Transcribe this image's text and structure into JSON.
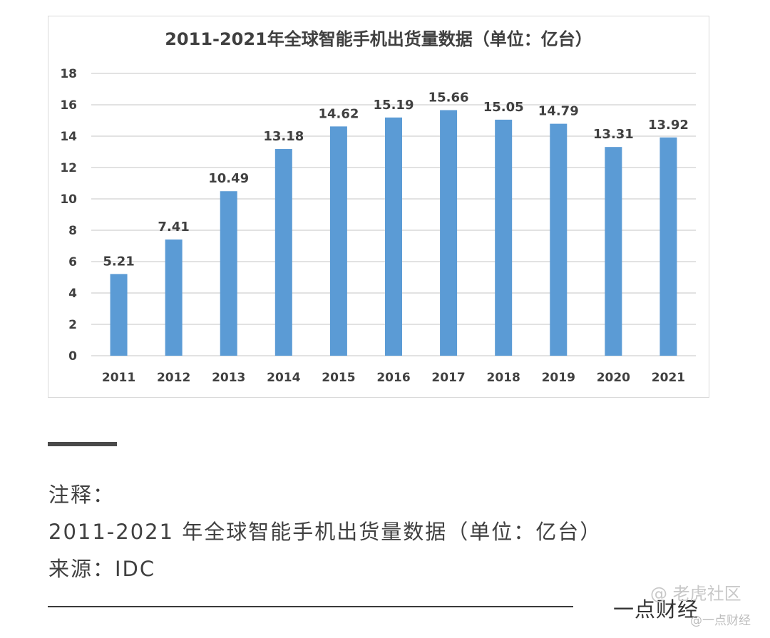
{
  "chart_data": {
    "type": "bar",
    "title": "2011-2021年全球智能手机出货量数据（单位：亿台）",
    "categories": [
      "2011",
      "2012",
      "2013",
      "2014",
      "2015",
      "2016",
      "2017",
      "2018",
      "2019",
      "2020",
      "2021"
    ],
    "values": [
      5.21,
      7.41,
      10.49,
      13.18,
      14.62,
      15.19,
      15.66,
      15.05,
      14.79,
      13.31,
      13.92
    ],
    "value_labels": [
      "5.21",
      "7.41",
      "10.49",
      "13.18",
      "14.62",
      "15.19",
      "15.66",
      "15.05",
      "14.79",
      "13.31",
      "13.92"
    ],
    "xlabel": "",
    "ylabel": "",
    "ylim": [
      0,
      18
    ],
    "yticks": [
      0,
      2,
      4,
      6,
      8,
      10,
      12,
      14,
      16,
      18
    ],
    "grid": true,
    "bar_color": "#5b9bd5",
    "grid_color": "#d9d9d9"
  },
  "notes": {
    "heading": "注释：",
    "line1": "2011-2021 年全球智能手机出货量数据（单位：亿台）",
    "line2": "来源：IDC"
  },
  "signature": "一点财经",
  "watermark": {
    "main": "@ 老虎社区",
    "sub": "@一点财经"
  }
}
